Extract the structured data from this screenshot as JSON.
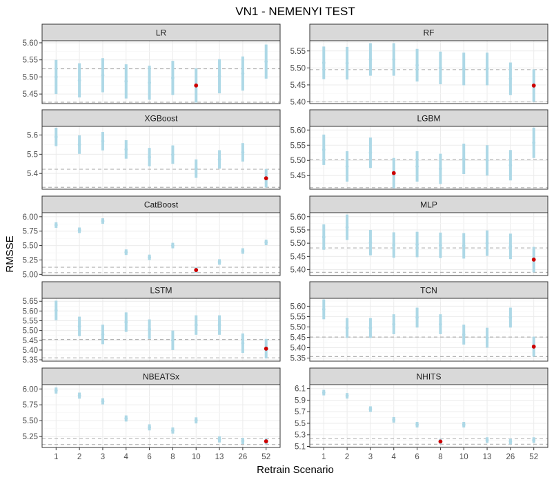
{
  "chart_data": {
    "type": "errorbar",
    "title": "VN1 - NEMENYI TEST",
    "xlabel": "Retrain Scenario",
    "ylabel": "RMSSE",
    "categories": [
      "1",
      "2",
      "3",
      "4",
      "6",
      "8",
      "10",
      "13",
      "26",
      "52"
    ],
    "colors": {
      "interval": "#add8e6",
      "best": "#cc0000",
      "reference_line": "#b3b3b3",
      "strip": "#d9d9d9"
    },
    "panels": [
      {
        "name": "LR",
        "ylim": [
          5.422,
          5.606
        ],
        "yticks": [
          "5.45",
          "5.50",
          "5.55",
          "5.60"
        ],
        "means": [
          5.5,
          5.49,
          5.505,
          5.487,
          5.483,
          5.497,
          5.475,
          5.502,
          5.51,
          5.545
        ],
        "halfwidth": 0.05,
        "best": "10",
        "ref_lines": [
          5.426,
          5.524
        ]
      },
      {
        "name": "RF",
        "ylim": [
          5.395,
          5.58
        ],
        "yticks": [
          "5.40",
          "5.45",
          "5.50",
          "5.55"
        ],
        "means": [
          5.515,
          5.514,
          5.525,
          5.525,
          5.508,
          5.5,
          5.497,
          5.497,
          5.468,
          5.448
        ],
        "halfwidth": 0.048,
        "best": "52",
        "ref_lines": [
          5.4,
          5.495
        ]
      },
      {
        "name": "XGBoost",
        "ylim": [
          5.318,
          5.645
        ],
        "yticks": [
          "5.4",
          "5.5",
          "5.6"
        ],
        "means": [
          5.59,
          5.55,
          5.568,
          5.525,
          5.485,
          5.498,
          5.425,
          5.473,
          5.51,
          5.375
        ],
        "halfwidth": 0.048,
        "best": "52",
        "ref_lines": [
          5.328,
          5.422
        ]
      },
      {
        "name": "LGBM",
        "ylim": [
          5.405,
          5.612
        ],
        "yticks": [
          "5.45",
          "5.50",
          "5.55",
          "5.60"
        ],
        "means": [
          5.535,
          5.48,
          5.525,
          5.458,
          5.48,
          5.472,
          5.505,
          5.5,
          5.484,
          5.558
        ],
        "halfwidth": 0.05,
        "best": "4",
        "ref_lines": [
          5.41,
          5.503
        ]
      },
      {
        "name": "CatBoost",
        "ylim": [
          4.98,
          6.07
        ],
        "yticks": [
          "5.00",
          "5.25",
          "5.50",
          "5.75",
          "6.00"
        ],
        "means": [
          5.855,
          5.765,
          5.925,
          5.385,
          5.295,
          5.5,
          5.075,
          5.215,
          5.405,
          5.555
        ],
        "halfwidth": 0.048,
        "best": "10",
        "ref_lines": [
          5.03,
          5.124
        ]
      },
      {
        "name": "MLP",
        "ylim": [
          5.378,
          5.615
        ],
        "yticks": [
          "5.40",
          "5.45",
          "5.50",
          "5.55",
          "5.60"
        ],
        "means": [
          5.523,
          5.56,
          5.502,
          5.493,
          5.495,
          5.492,
          5.49,
          5.5,
          5.488,
          5.438
        ],
        "halfwidth": 0.048,
        "best": "52",
        "ref_lines": [
          5.39,
          5.482
        ]
      },
      {
        "name": "LSTM",
        "ylim": [
          5.343,
          5.665
        ],
        "yticks": [
          "5.35",
          "5.40",
          "5.45",
          "5.50",
          "5.55",
          "5.60",
          "5.65"
        ],
        "means": [
          5.603,
          5.521,
          5.48,
          5.543,
          5.507,
          5.45,
          5.528,
          5.528,
          5.435,
          5.407
        ],
        "halfwidth": 0.05,
        "best": "52",
        "ref_lines": [
          5.36,
          5.454
        ]
      },
      {
        "name": "TCN",
        "ylim": [
          5.335,
          5.638
        ],
        "yticks": [
          "5.35",
          "5.40",
          "5.45",
          "5.50",
          "5.55",
          "5.60"
        ],
        "means": [
          5.585,
          5.495,
          5.495,
          5.513,
          5.545,
          5.513,
          5.463,
          5.448,
          5.545,
          5.405
        ],
        "halfwidth": 0.048,
        "best": "52",
        "ref_lines": [
          5.357,
          5.451
        ]
      },
      {
        "name": "NBEATSx",
        "ylim": [
          5.078,
          6.068
        ],
        "yticks": [
          "5.25",
          "5.50",
          "5.75",
          "6.00"
        ],
        "means": [
          5.975,
          5.895,
          5.805,
          5.535,
          5.395,
          5.345,
          5.505,
          5.205,
          5.18,
          5.175
        ],
        "halfwidth": 0.048,
        "best": "52",
        "ref_lines": [
          5.125,
          5.22
        ]
      },
      {
        "name": "NHITS",
        "ylim": [
          5.082,
          6.168
        ],
        "yticks": [
          "5.1",
          "5.3",
          "5.5",
          "5.7",
          "5.9",
          "6.1"
        ],
        "means": [
          6.03,
          5.975,
          5.745,
          5.56,
          5.475,
          5.185,
          5.475,
          5.21,
          5.185,
          5.21
        ],
        "halfwidth": 0.048,
        "best": "8",
        "ref_lines": [
          5.138,
          5.232
        ]
      }
    ]
  }
}
